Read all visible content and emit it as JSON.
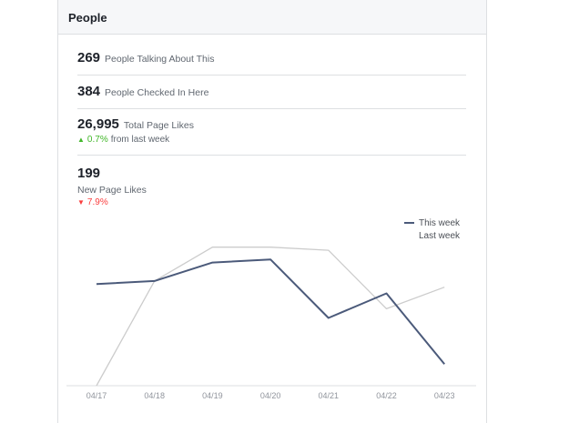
{
  "card": {
    "title": "People"
  },
  "stats": [
    {
      "value": "269",
      "label": "People Talking About This"
    },
    {
      "value": "384",
      "label": "People Checked In Here"
    },
    {
      "value": "26,995",
      "label": "Total Page Likes",
      "change": {
        "direction": "up",
        "percent": "0.7%",
        "text": "from last week"
      }
    },
    {
      "value": "199",
      "label": "New Page Likes",
      "change": {
        "direction": "down",
        "percent": "7.9%"
      }
    }
  ],
  "chart_data": {
    "type": "line",
    "categories": [
      "04/17",
      "04/18",
      "04/19",
      "04/20",
      "04/21",
      "04/22",
      "04/23"
    ],
    "series": [
      {
        "name": "This week",
        "color": "#4b5a7a",
        "values": [
          33,
          34,
          40,
          41,
          22,
          30,
          7
        ]
      },
      {
        "name": "Last week",
        "color": "#cccccc",
        "values": [
          0,
          34,
          45,
          45,
          44,
          25,
          32
        ]
      }
    ],
    "ylim": [
      0,
      52
    ],
    "legend": "top-right",
    "grid": false
  }
}
